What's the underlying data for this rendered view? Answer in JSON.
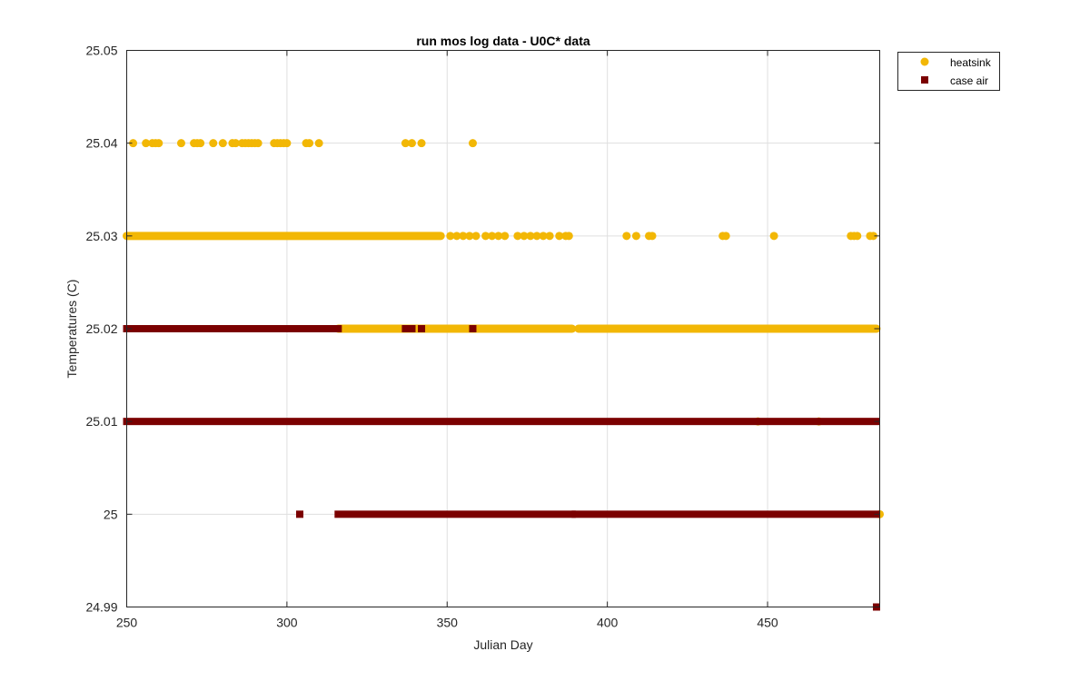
{
  "chart_data": {
    "type": "scatter",
    "title": "run mos log data - U0C* data",
    "xlabel": "Julian Day",
    "ylabel": "Temperatures (C)",
    "xlim": [
      250,
      485
    ],
    "ylim": [
      24.99,
      25.05
    ],
    "xticks": [
      "250",
      "300",
      "350",
      "400",
      "450"
    ],
    "yticks": [
      "24.99",
      "25",
      "25.01",
      "25.02",
      "25.03",
      "25.04",
      "25.05"
    ],
    "grid": true,
    "legend_position": "outside top-right",
    "series": [
      {
        "name": "heatsink",
        "color": "#F2B705",
        "marker": "circle",
        "segments": [
          {
            "y": 25.04,
            "x": [
              252,
              256,
              258,
              259,
              260,
              267,
              271,
              272,
              273,
              277,
              280,
              283,
              284,
              286,
              287,
              288,
              289,
              290,
              291,
              296,
              297,
              298,
              299,
              300,
              306,
              307,
              310,
              337,
              339,
              342,
              358
            ]
          },
          {
            "y": 25.03,
            "ranges": [
              [
                250,
                348
              ]
            ],
            "x": [
              351,
              353,
              355,
              357,
              359,
              362,
              364,
              366,
              368,
              372,
              374,
              376,
              378,
              380,
              382,
              385,
              387,
              388,
              406,
              409,
              413,
              414,
              436,
              437,
              452,
              476,
              477,
              478,
              482,
              483
            ]
          },
          {
            "y": 25.02,
            "ranges": [
              [
                316,
                389
              ],
              [
                391,
                484
              ]
            ]
          },
          {
            "y": 25.01,
            "x": [
              447,
              466
            ]
          },
          {
            "y": 25.0,
            "x": [
              485
            ]
          }
        ]
      },
      {
        "name": "case air",
        "color": "#7B0000",
        "marker": "square",
        "segments": [
          {
            "y": 25.02,
            "ranges": [
              [
                250,
                254
              ],
              [
                256,
                264
              ],
              [
                266,
                275
              ],
              [
                277,
                316
              ]
            ],
            "x": [
              337,
              338,
              339,
              342,
              358
            ]
          },
          {
            "y": 25.01,
            "ranges": [
              [
                250,
                446
              ],
              [
                448,
                465
              ],
              [
                467,
                484
              ]
            ]
          },
          {
            "y": 25.0,
            "ranges": [
              [
                316,
                389
              ],
              [
                390,
                484
              ]
            ],
            "x": [
              304
            ]
          },
          {
            "y": 24.99,
            "x": [
              484
            ]
          }
        ]
      }
    ]
  }
}
